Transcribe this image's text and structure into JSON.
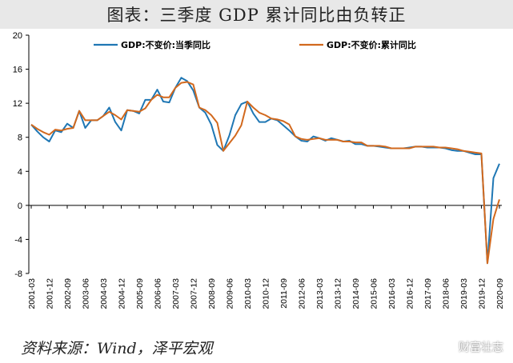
{
  "header": {
    "title": "图表：三季度 GDP 累计同比由负转正"
  },
  "footer": {
    "source": "资料来源：Wind，泽平宏观"
  },
  "watermark": {
    "text": "财富壮志"
  },
  "colors": {
    "series1": "#1f77b4",
    "series2": "#d2691e",
    "axis": "#000000",
    "background": "#ffffff",
    "title_bg": "#e8e8e8"
  },
  "chart_data": {
    "type": "line",
    "title": "",
    "xlabel": "",
    "ylabel": "",
    "ylim": [
      -8,
      20
    ],
    "yticks": [
      -8,
      -4,
      0,
      4,
      8,
      12,
      16,
      20
    ],
    "grid": false,
    "legend_position": "top",
    "x_tick_labels": [
      "2001-03",
      "2001-12",
      "2002-09",
      "2003-06",
      "2004-03",
      "2004-12",
      "2005-09",
      "2006-06",
      "2007-03",
      "2007-12",
      "2008-09",
      "2009-06",
      "2010-03",
      "2010-12",
      "2011-09",
      "2012-06",
      "2013-03",
      "2013-12",
      "2014-09",
      "2015-06",
      "2016-03",
      "2016-12",
      "2017-09",
      "2018-06",
      "2019-03",
      "2019-12",
      "2020-09"
    ],
    "x": [
      "2001-03",
      "2001-06",
      "2001-09",
      "2001-12",
      "2002-03",
      "2002-06",
      "2002-09",
      "2002-12",
      "2003-03",
      "2003-06",
      "2003-09",
      "2003-12",
      "2004-03",
      "2004-06",
      "2004-09",
      "2004-12",
      "2005-03",
      "2005-06",
      "2005-09",
      "2005-12",
      "2006-03",
      "2006-06",
      "2006-09",
      "2006-12",
      "2007-03",
      "2007-06",
      "2007-09",
      "2007-12",
      "2008-03",
      "2008-06",
      "2008-09",
      "2008-12",
      "2009-03",
      "2009-06",
      "2009-09",
      "2009-12",
      "2010-03",
      "2010-06",
      "2010-09",
      "2010-12",
      "2011-03",
      "2011-06",
      "2011-09",
      "2011-12",
      "2012-03",
      "2012-06",
      "2012-09",
      "2012-12",
      "2013-03",
      "2013-06",
      "2013-09",
      "2013-12",
      "2014-03",
      "2014-06",
      "2014-09",
      "2014-12",
      "2015-03",
      "2015-06",
      "2015-09",
      "2015-12",
      "2016-03",
      "2016-06",
      "2016-09",
      "2016-12",
      "2017-03",
      "2017-06",
      "2017-09",
      "2017-12",
      "2018-03",
      "2018-06",
      "2018-09",
      "2018-12",
      "2019-03",
      "2019-06",
      "2019-09",
      "2019-12",
      "2020-03",
      "2020-06",
      "2020-09"
    ],
    "series": [
      {
        "name": "GDP:不变价:当季同比",
        "values": [
          9.5,
          8.7,
          8.0,
          7.5,
          8.8,
          8.6,
          9.6,
          9.1,
          11.1,
          9.1,
          10.0,
          10.0,
          10.5,
          11.5,
          9.8,
          8.8,
          11.2,
          11.1,
          10.8,
          12.4,
          12.4,
          13.6,
          12.2,
          12.1,
          13.8,
          15.0,
          14.6,
          13.5,
          11.5,
          10.9,
          9.5,
          7.1,
          6.4,
          8.2,
          10.6,
          11.9,
          12.2,
          10.8,
          9.8,
          9.8,
          10.2,
          10.0,
          9.4,
          8.8,
          8.1,
          7.6,
          7.5,
          8.1,
          7.9,
          7.6,
          7.9,
          7.7,
          7.5,
          7.6,
          7.2,
          7.2,
          7.0,
          7.0,
          6.9,
          6.8,
          6.7,
          6.7,
          6.7,
          6.8,
          6.9,
          6.9,
          6.8,
          6.8,
          6.8,
          6.7,
          6.5,
          6.4,
          6.4,
          6.2,
          6.0,
          6.0,
          -6.8,
          3.2,
          4.9
        ]
      },
      {
        "name": "GDP:不变价:累计同比",
        "values": [
          9.5,
          9.0,
          8.6,
          8.3,
          8.9,
          8.8,
          9.0,
          9.1,
          11.1,
          10.0,
          10.0,
          10.0,
          10.5,
          11.0,
          10.6,
          10.1,
          11.2,
          11.1,
          11.0,
          11.4,
          12.4,
          13.0,
          12.7,
          12.7,
          13.8,
          14.4,
          14.5,
          14.2,
          11.5,
          11.2,
          10.6,
          9.7,
          6.4,
          7.3,
          8.2,
          9.4,
          12.2,
          11.5,
          10.9,
          10.6,
          10.2,
          10.1,
          9.9,
          9.5,
          8.1,
          7.8,
          7.7,
          7.8,
          7.9,
          7.7,
          7.7,
          7.7,
          7.5,
          7.5,
          7.4,
          7.4,
          7.0,
          7.0,
          7.0,
          6.9,
          6.7,
          6.7,
          6.7,
          6.7,
          6.9,
          6.9,
          6.9,
          6.9,
          6.8,
          6.8,
          6.7,
          6.6,
          6.4,
          6.3,
          6.2,
          6.1,
          -6.8,
          -1.6,
          0.7
        ]
      }
    ]
  }
}
